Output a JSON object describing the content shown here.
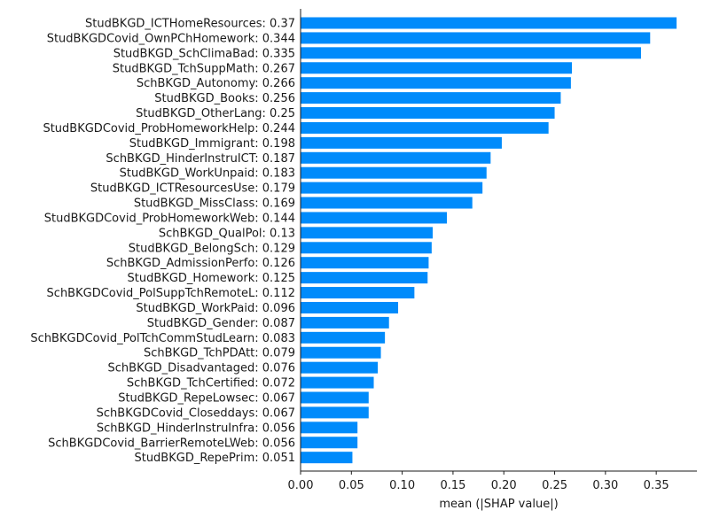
{
  "chart_data": {
    "type": "bar",
    "orientation": "horizontal",
    "bar_color": "#008bfb",
    "xlabel": "mean (|SHAP value|)",
    "xlim": [
      0.0,
      0.39
    ],
    "xticks": [
      "0.00",
      "0.05",
      "0.10",
      "0.15",
      "0.20",
      "0.25",
      "0.30",
      "0.35"
    ],
    "xtick_values": [
      0.0,
      0.05,
      0.1,
      0.15,
      0.2,
      0.25,
      0.3,
      0.35
    ],
    "grid": false,
    "categories": [
      "StudBKGD_ICTHomeResources: 0.37",
      "StudBKGDCovid_OwnPChHomework: 0.344",
      "StudBKGD_SchClimaBad: 0.335",
      "StudBKGD_TchSuppMath: 0.267",
      "SchBKGD_Autonomy: 0.266",
      "StudBKGD_Books: 0.256",
      "StudBKGD_OtherLang: 0.25",
      "StudBKGDCovid_ProbHomeworkHelp: 0.244",
      "StudBKGD_Immigrant: 0.198",
      "SchBKGD_HinderInstruICT: 0.187",
      "StudBKGD_WorkUnpaid: 0.183",
      "StudBKGD_ICTResourcesUse: 0.179",
      "StudBKGD_MissClass: 0.169",
      "StudBKGDCovid_ProbHomeworkWeb: 0.144",
      "SchBKGD_QualPol: 0.13",
      "StudBKGD_BelongSch: 0.129",
      "SchBKGD_AdmissionPerfo: 0.126",
      "StudBKGD_Homework: 0.125",
      "SchBKGDCovid_PolSuppTchRemoteL: 0.112",
      "StudBKGD_WorkPaid: 0.096",
      "StudBKGD_Gender: 0.087",
      "SchBKGDCovid_PolTchCommStudLearn: 0.083",
      "SchBKGD_TchPDAtt: 0.079",
      "SchBKGD_Disadvantaged: 0.076",
      "SchBKGD_TchCertified: 0.072",
      "StudBKGD_RepeLowsec: 0.067",
      "SchBKGDCovid_Closeddays: 0.067",
      "SchBKGD_HinderInstruInfra: 0.056",
      "SchBKGDCovid_BarrierRemoteLWeb: 0.056",
      "StudBKGD_RepePrim: 0.051"
    ],
    "values": [
      0.37,
      0.344,
      0.335,
      0.267,
      0.266,
      0.256,
      0.25,
      0.244,
      0.198,
      0.187,
      0.183,
      0.179,
      0.169,
      0.144,
      0.13,
      0.129,
      0.126,
      0.125,
      0.112,
      0.096,
      0.087,
      0.083,
      0.079,
      0.076,
      0.072,
      0.067,
      0.067,
      0.056,
      0.056,
      0.051
    ]
  }
}
